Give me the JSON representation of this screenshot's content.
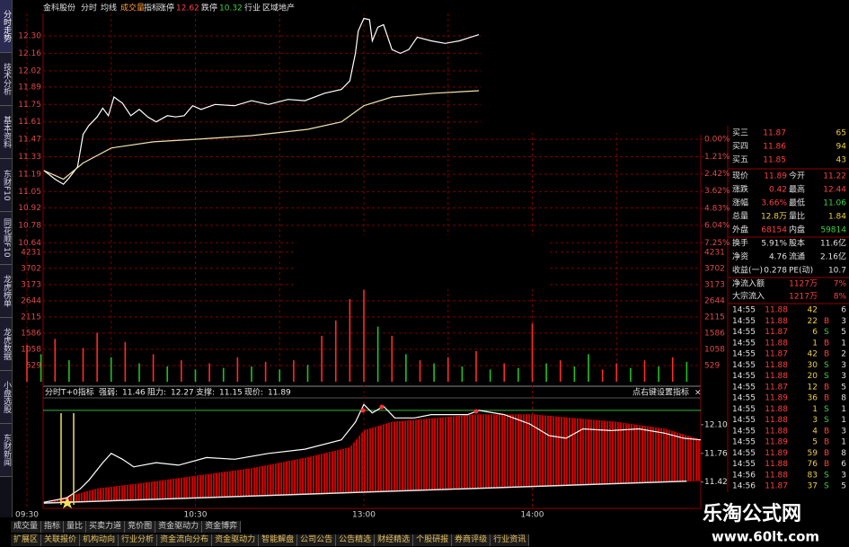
{
  "sidebar_tabs": [
    "分时走势",
    "技术分析",
    "基本资料",
    "东财F10",
    "同花顺F10",
    "龙虎榜单",
    "龙虎数据",
    "小盘选股",
    "东财新闻"
  ],
  "header": {
    "stock": "金科股份",
    "menu": [
      "分时",
      "均线",
      "成交量",
      "指标"
    ],
    "limit_up_label": "涨停",
    "limit_up": 12.62,
    "limit_down_label": "跌停",
    "limit_down": 10.32,
    "industry_label": "行业",
    "industry": "区域地产"
  },
  "time_axis": {
    "labels": [
      "09:30",
      "10:30",
      "13:00",
      "14:00"
    ],
    "xlim": [
      "09:30",
      "15:00"
    ]
  },
  "price_chart": {
    "type": "line",
    "ylim": [
      10.57,
      12.48
    ],
    "yticks": [
      {
        "value": 12.3,
        "label": "12.30"
      },
      12.16,
      12.02,
      11.89,
      11.75,
      11.61,
      11.47,
      11.33,
      11.19,
      11.05,
      10.92,
      10.78,
      10.64
    ],
    "y2lim": [
      7.85,
      -8.81
    ],
    "y2ticks": [
      {
        "value": 0,
        "label": "0.00%"
      },
      {
        "value": 1.21,
        "label": "1.21%"
      },
      {
        "value": 2.42,
        "label": "2.42%"
      },
      {
        "value": 3.62,
        "label": "3.62%"
      },
      {
        "value": 4.83,
        "label": "4.83%"
      },
      {
        "value": 6.04,
        "label": "6.04%"
      },
      {
        "value": 7.25,
        "label": "7.25%"
      }
    ],
    "series": [
      {
        "color": "#ffffff",
        "x": [
          "09:36",
          "09:40",
          "09:43",
          "09:45",
          "09:48",
          "09:50",
          "09:52",
          "09:55",
          "09:57",
          "09:59",
          "10:01",
          "10:04",
          "10:07",
          "10:10",
          "10:13",
          "10:16",
          "10:20",
          "10:23",
          "10:26",
          "10:29",
          "10:32",
          "10:37",
          "10:44",
          "10:50",
          "10:56",
          "11:03",
          "11:09",
          "11:16",
          "11:22",
          "11:25",
          "11:27",
          "11:28",
          "13:00",
          "13:02",
          "13:03",
          "13:05",
          "13:07",
          "13:10",
          "13:13",
          "13:16",
          "13:19",
          "13:24",
          "13:29",
          "13:34",
          "13:38",
          "13:41"
        ],
        "values": [
          11.22,
          11.15,
          11.11,
          11.16,
          11.25,
          11.51,
          11.58,
          11.65,
          11.72,
          11.66,
          11.81,
          11.76,
          11.66,
          11.71,
          11.65,
          11.61,
          11.66,
          11.65,
          11.66,
          11.74,
          11.71,
          11.75,
          11.74,
          11.78,
          11.75,
          11.79,
          11.78,
          11.84,
          11.87,
          11.94,
          12.16,
          12.34,
          12.44,
          12.43,
          12.26,
          12.37,
          12.39,
          12.19,
          12.16,
          12.19,
          12.29,
          12.26,
          12.24,
          12.26,
          12.29,
          12.31
        ]
      },
      {
        "color": "#efe4b0",
        "x": [
          "09:36",
          "09:43",
          "09:50",
          "10:00",
          "10:15",
          "10:30",
          "10:50",
          "11:10",
          "11:22",
          "13:00",
          "13:10",
          "13:25",
          "13:41"
        ],
        "values": [
          11.22,
          11.15,
          11.28,
          11.4,
          11.45,
          11.47,
          11.5,
          11.55,
          11.61,
          11.74,
          11.81,
          11.84,
          11.86
        ]
      }
    ]
  },
  "volume_chart": {
    "type": "bar",
    "ylim": [
      0,
      4400
    ],
    "yticks": [
      4231,
      3702,
      3173,
      2644,
      2115,
      1586,
      1058,
      529
    ],
    "up_bars": {
      "color": "#ff2a2a",
      "x": [
        "09:30",
        "09:40",
        "09:50",
        "09:55",
        "10:05",
        "10:15",
        "10:25",
        "10:35",
        "10:45",
        "10:55",
        "11:05",
        "11:15",
        "11:20",
        "11:25",
        "13:00",
        "13:10",
        "13:20",
        "13:30",
        "13:40",
        "13:50",
        "14:00",
        "14:10",
        "14:25",
        "14:30",
        "14:40",
        "14:50"
      ],
      "values": [
        1200,
        1400,
        1100,
        1600,
        1300,
        900,
        700,
        600,
        800,
        650,
        700,
        1500,
        2000,
        2700,
        3000,
        1500,
        700,
        800,
        1000,
        600,
        1900,
        700,
        400,
        600,
        700,
        800
      ]
    },
    "down_bars": {
      "color": "#22c022",
      "x": [
        "09:35",
        "09:45",
        "10:00",
        "10:10",
        "10:20",
        "10:30",
        "10:40",
        "10:50",
        "11:00",
        "11:10",
        "13:05",
        "13:15",
        "13:25",
        "13:35",
        "13:45",
        "13:55",
        "14:05",
        "14:15",
        "14:20",
        "14:35",
        "14:45",
        "14:55"
      ],
      "values": [
        900,
        700,
        800,
        600,
        500,
        400,
        450,
        500,
        400,
        550,
        1800,
        900,
        600,
        500,
        400,
        450,
        600,
        500,
        900,
        450,
        500,
        650
      ]
    }
  },
  "indicator_chart": {
    "type": "line",
    "name": "分时T+0指标",
    "strength_label": "强弱:",
    "strength": 11.46,
    "resistance_label": "阻力:",
    "resistance": 12.27,
    "support_label": "支撑:",
    "support": 11.15,
    "price_label": "现价:",
    "price": 11.89,
    "note": "点右键设置指标",
    "close": "×",
    "ylim": [
      11.15,
      12.45
    ],
    "yticks": [
      {
        "value": 12.1,
        "label": "12.10"
      },
      11.76,
      11.42
    ],
    "resistance_color": "#3cb043",
    "area": {
      "color": "#c40000",
      "x": [
        "09:36",
        "09:45",
        "09:55",
        "10:10",
        "10:30",
        "10:50",
        "11:10",
        "11:25",
        "13:00",
        "13:10",
        "13:40",
        "14:00",
        "14:30",
        "14:47",
        "15:00"
      ],
      "values": [
        11.17,
        11.25,
        11.34,
        11.4,
        11.49,
        11.58,
        11.71,
        11.83,
        12.03,
        12.13,
        12.22,
        12.22,
        12.13,
        12.05,
        11.92
      ]
    },
    "line": {
      "color": "#ffffff",
      "x": [
        "09:36",
        "09:44",
        "09:49",
        "09:52",
        "09:57",
        "10:00",
        "10:04",
        "10:08",
        "10:16",
        "10:24",
        "10:34",
        "10:44",
        "10:56",
        "11:09",
        "11:22",
        "11:27",
        "13:00",
        "13:03",
        "13:07",
        "13:11",
        "13:18",
        "13:24",
        "13:30",
        "13:37",
        "13:41",
        "13:50",
        "13:59",
        "14:06",
        "14:12",
        "14:18",
        "14:28",
        "14:38",
        "14:47",
        "14:54",
        "15:00"
      ],
      "values": [
        11.18,
        11.23,
        11.34,
        11.44,
        11.65,
        11.76,
        11.69,
        11.6,
        11.65,
        11.62,
        11.71,
        11.69,
        11.76,
        11.81,
        11.92,
        12.13,
        12.34,
        12.24,
        12.32,
        12.18,
        12.18,
        12.22,
        12.22,
        12.22,
        12.27,
        12.22,
        12.11,
        11.97,
        11.94,
        12.05,
        12.03,
        12.05,
        12.0,
        11.94,
        11.92
      ]
    },
    "baseline": {
      "color": "#e8e8e8",
      "x": [
        "09:36",
        "14:55"
      ],
      "values": [
        11.17,
        11.43
      ]
    }
  },
  "quote_panel": {
    "bids": [
      [
        "买三",
        11.87,
        65
      ],
      [
        "买四",
        11.86,
        94
      ],
      [
        "买五",
        11.85,
        43
      ]
    ],
    "stats": [
      [
        "现价",
        11.89,
        "今开",
        11.22
      ],
      [
        "涨跌",
        0.42,
        "最高",
        12.44
      ],
      [
        "涨幅",
        "3.66%",
        "最低",
        11.06
      ],
      [
        "总量",
        "12.8万",
        "量比",
        1.84
      ],
      [
        "外盘",
        68154,
        "内盘",
        59814
      ],
      [
        "换手",
        "5.91%",
        "股本",
        "11.6亿"
      ],
      [
        "净资",
        4.76,
        "流通",
        "2.16亿"
      ],
      [
        "收益(一)",
        0.278,
        "PE(动)",
        10.7
      ]
    ],
    "flows": [
      [
        "净流入额",
        "1127万",
        "7%"
      ],
      [
        "大宗流入",
        "1217万",
        "8%"
      ]
    ]
  },
  "trades": [
    {
      "time": "14:55",
      "price": 11.88,
      "volume": 42,
      "count": 6
    },
    {
      "time": "14:55",
      "price": 11.88,
      "volume": 22,
      "side": "B",
      "count": 3
    },
    {
      "time": "14:55",
      "price": 11.87,
      "volume": 6,
      "side": "S",
      "count": 5
    },
    {
      "time": "14:55",
      "price": 11.88,
      "volume": 1,
      "side": "B",
      "count": 1
    },
    {
      "time": "14:55",
      "price": 11.87,
      "volume": 42,
      "side": "B",
      "count": 2
    },
    {
      "time": "14:55",
      "price": 11.88,
      "volume": 30,
      "side": "S",
      "count": 3
    },
    {
      "time": "14:55",
      "price": 11.88,
      "volume": 20,
      "side": "S",
      "count": 3
    },
    {
      "time": "14:55",
      "price": 11.87,
      "volume": 12,
      "side": "B",
      "count": 5
    },
    {
      "time": "14:55",
      "price": 11.89,
      "volume": 36,
      "side": "B",
      "count": 8
    },
    {
      "time": "14:55",
      "price": 11.88,
      "volume": 1,
      "side": "S",
      "count": 1
    },
    {
      "time": "14:55",
      "price": 11.88,
      "volume": 3,
      "side": "S",
      "count": 1
    },
    {
      "time": "14:55",
      "price": 11.88,
      "volume": 4,
      "side": "B",
      "count": 3
    },
    {
      "time": "14:55",
      "price": 11.89,
      "volume": 5,
      "side": "B",
      "count": 1
    },
    {
      "time": "14:55",
      "price": 11.89,
      "volume": 59,
      "side": "B",
      "count": 8
    },
    {
      "time": "14:55",
      "price": 11.88,
      "volume": 76,
      "side": "B",
      "count": 6
    },
    {
      "time": "14:56",
      "price": 11.88,
      "volume": 83,
      "side": "S",
      "count": 3
    },
    {
      "time": "14:56",
      "price": 11.87,
      "volume": 37,
      "side": "S",
      "count": 5
    }
  ],
  "tabs_row1": [
    "成交量",
    "指标",
    "量比",
    "买卖力道",
    "竞价图",
    "资金驱动力",
    "资金博弈"
  ],
  "tabs_row2": [
    "扩展区",
    "关联报价",
    "机构动向",
    "行业分析",
    "资金流向分布",
    "资金驱动力",
    "智能解盘",
    "公司公告",
    "公告精选",
    "财经精选",
    "个股研报",
    "券商评级",
    "行业资讯"
  ],
  "watermark": {
    "title": "乐淘公式网",
    "url": "www.60lt.com"
  }
}
